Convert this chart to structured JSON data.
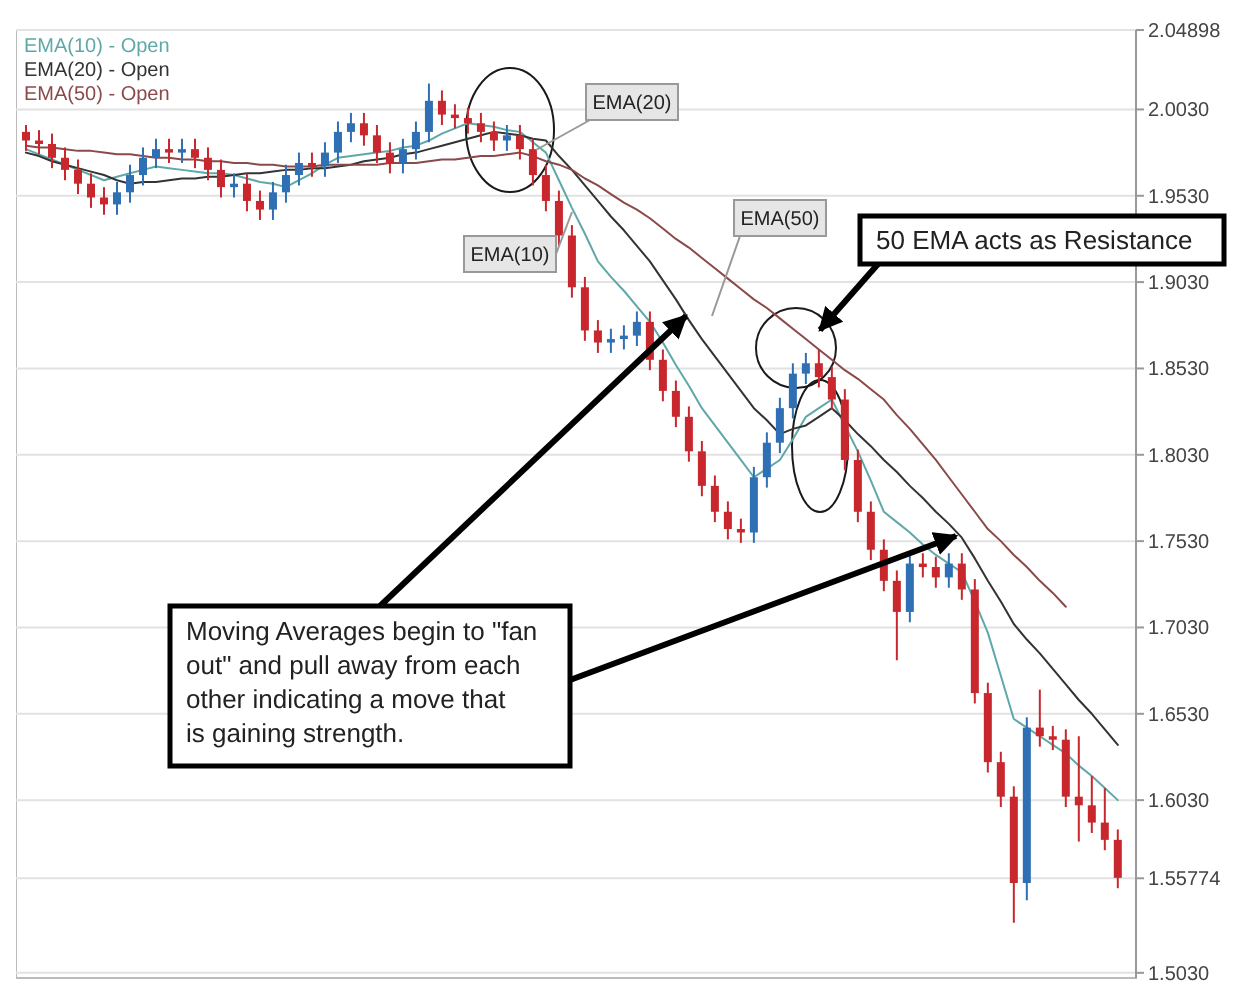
{
  "chart_data": {
    "type": "candlestick",
    "categories": [
      null,
      null,
      null,
      null,
      null,
      null,
      null,
      null,
      null,
      null,
      null,
      null,
      null,
      null,
      null,
      null,
      null,
      null,
      null,
      null,
      null,
      null,
      null,
      null,
      null,
      null,
      null,
      null,
      null,
      null,
      null,
      null,
      null,
      null,
      null,
      null,
      null,
      null,
      null,
      null,
      null,
      null,
      null,
      null,
      null,
      null,
      null,
      null,
      null,
      null,
      null,
      null,
      null,
      null,
      null,
      null,
      null,
      null,
      null,
      null,
      null,
      null,
      null,
      null,
      null,
      null,
      null,
      null,
      null,
      null,
      null,
      null,
      null,
      null,
      null,
      null,
      null,
      null,
      null,
      null,
      null,
      null,
      null,
      null,
      null
    ],
    "ohlc": [
      [
        1.99,
        1.994,
        1.979,
        1.985
      ],
      [
        1.985,
        1.991,
        1.977,
        1.983
      ],
      [
        1.983,
        1.989,
        1.969,
        1.975
      ],
      [
        1.975,
        1.981,
        1.962,
        1.968
      ],
      [
        1.968,
        1.974,
        1.954,
        1.96
      ],
      [
        1.96,
        1.966,
        1.946,
        1.952
      ],
      [
        1.952,
        1.958,
        1.942,
        1.948
      ],
      [
        1.948,
        1.961,
        1.942,
        1.955
      ],
      [
        1.955,
        1.971,
        1.949,
        1.965
      ],
      [
        1.965,
        1.981,
        1.959,
        1.975
      ],
      [
        1.975,
        1.986,
        1.969,
        1.98
      ],
      [
        1.98,
        1.986,
        1.972,
        1.978
      ],
      [
        1.978,
        1.986,
        1.972,
        1.98
      ],
      [
        1.98,
        1.986,
        1.969,
        1.975
      ],
      [
        1.975,
        1.981,
        1.962,
        1.968
      ],
      [
        1.968,
        1.974,
        1.952,
        1.958
      ],
      [
        1.958,
        1.966,
        1.952,
        1.96
      ],
      [
        1.96,
        1.966,
        1.944,
        1.95
      ],
      [
        1.95,
        1.956,
        1.939,
        1.945
      ],
      [
        1.945,
        1.961,
        1.939,
        1.955
      ],
      [
        1.955,
        1.971,
        1.949,
        1.965
      ],
      [
        1.965,
        1.978,
        1.959,
        1.972
      ],
      [
        1.972,
        1.978,
        1.964,
        1.97
      ],
      [
        1.97,
        1.984,
        1.964,
        1.978
      ],
      [
        1.978,
        1.996,
        1.972,
        1.99
      ],
      [
        1.99,
        2.001,
        1.984,
        1.995
      ],
      [
        1.995,
        2.001,
        1.982,
        1.988
      ],
      [
        1.988,
        1.994,
        1.972,
        1.978
      ],
      [
        1.978,
        1.984,
        1.966,
        1.972
      ],
      [
        1.972,
        1.986,
        1.966,
        1.98
      ],
      [
        1.98,
        1.996,
        1.974,
        1.99
      ],
      [
        1.99,
        2.018,
        1.984,
        2.008
      ],
      [
        2.008,
        2.014,
        1.994,
        2.0
      ],
      [
        2.0,
        2.006,
        1.992,
        1.998
      ],
      [
        1.998,
        2.004,
        1.989,
        1.995
      ],
      [
        1.995,
        2.001,
        1.984,
        1.99
      ],
      [
        1.99,
        1.996,
        1.979,
        1.985
      ],
      [
        1.985,
        1.994,
        1.979,
        1.988
      ],
      [
        1.988,
        1.994,
        1.974,
        1.98
      ],
      [
        1.98,
        1.986,
        1.959,
        1.965
      ],
      [
        1.965,
        1.971,
        1.944,
        1.95
      ],
      [
        1.95,
        1.956,
        1.924,
        1.93
      ],
      [
        1.93,
        1.936,
        1.894,
        1.9
      ],
      [
        1.9,
        1.906,
        1.869,
        1.875
      ],
      [
        1.875,
        1.881,
        1.862,
        1.868
      ],
      [
        1.868,
        1.876,
        1.862,
        1.87
      ],
      [
        1.87,
        1.878,
        1.864,
        1.872
      ],
      [
        1.872,
        1.886,
        1.866,
        1.88
      ],
      [
        1.88,
        1.886,
        1.852,
        1.858
      ],
      [
        1.858,
        1.864,
        1.834,
        1.84
      ],
      [
        1.84,
        1.846,
        1.819,
        1.825
      ],
      [
        1.825,
        1.831,
        1.799,
        1.805
      ],
      [
        1.805,
        1.811,
        1.779,
        1.785
      ],
      [
        1.785,
        1.791,
        1.764,
        1.77
      ],
      [
        1.77,
        1.776,
        1.754,
        1.76
      ],
      [
        1.76,
        1.766,
        1.752,
        1.758
      ],
      [
        1.758,
        1.796,
        1.752,
        1.79
      ],
      [
        1.79,
        1.816,
        1.784,
        1.81
      ],
      [
        1.81,
        1.836,
        1.804,
        1.83
      ],
      [
        1.83,
        1.856,
        1.824,
        1.85
      ],
      [
        1.85,
        1.862,
        1.844,
        1.856
      ],
      [
        1.856,
        1.864,
        1.842,
        1.848
      ],
      [
        1.848,
        1.854,
        1.829,
        1.835
      ],
      [
        1.835,
        1.841,
        1.794,
        1.8
      ],
      [
        1.8,
        1.806,
        1.764,
        1.77
      ],
      [
        1.77,
        1.776,
        1.742,
        1.748
      ],
      [
        1.748,
        1.754,
        1.724,
        1.73
      ],
      [
        1.73,
        1.736,
        1.684,
        1.712
      ],
      [
        1.712,
        1.746,
        1.706,
        1.74
      ],
      [
        1.74,
        1.746,
        1.732,
        1.738
      ],
      [
        1.738,
        1.744,
        1.726,
        1.732
      ],
      [
        1.732,
        1.746,
        1.726,
        1.74
      ],
      [
        1.74,
        1.746,
        1.719,
        1.725
      ],
      [
        1.725,
        1.731,
        1.659,
        1.665
      ],
      [
        1.665,
        1.671,
        1.619,
        1.625
      ],
      [
        1.625,
        1.631,
        1.599,
        1.605
      ],
      [
        1.605,
        1.611,
        1.532,
        1.555
      ],
      [
        1.555,
        1.651,
        1.545,
        1.645
      ],
      [
        1.645,
        1.667,
        1.634,
        1.64
      ],
      [
        1.64,
        1.646,
        1.632,
        1.638
      ],
      [
        1.638,
        1.644,
        1.599,
        1.605
      ],
      [
        1.605,
        1.64,
        1.579,
        1.6
      ],
      [
        1.6,
        1.617,
        1.584,
        1.59
      ],
      [
        1.59,
        1.61,
        1.574,
        1.58
      ],
      [
        1.58,
        1.586,
        1.552,
        1.558
      ]
    ],
    "colors": [
      "#c8282d",
      "#c8282d",
      "#c8282d",
      "#c8282d",
      "#c8282d",
      "#c8282d",
      "#c8282d",
      "#2f6fb3",
      "#2f6fb3",
      "#2f6fb3",
      "#2f6fb3",
      "#c8282d",
      "#2f6fb3",
      "#c8282d",
      "#c8282d",
      "#c8282d",
      "#2f6fb3",
      "#c8282d",
      "#c8282d",
      "#2f6fb3",
      "#2f6fb3",
      "#2f6fb3",
      "#c8282d",
      "#2f6fb3",
      "#2f6fb3",
      "#2f6fb3",
      "#c8282d",
      "#c8282d",
      "#c8282d",
      "#2f6fb3",
      "#2f6fb3",
      "#2f6fb3",
      "#c8282d",
      "#c8282d",
      "#c8282d",
      "#c8282d",
      "#c8282d",
      "#2f6fb3",
      "#c8282d",
      "#c8282d",
      "#c8282d",
      "#c8282d",
      "#c8282d",
      "#c8282d",
      "#c8282d",
      "#2f6fb3",
      "#2f6fb3",
      "#2f6fb3",
      "#c8282d",
      "#c8282d",
      "#c8282d",
      "#c8282d",
      "#c8282d",
      "#c8282d",
      "#c8282d",
      "#c8282d",
      "#2f6fb3",
      "#2f6fb3",
      "#2f6fb3",
      "#2f6fb3",
      "#2f6fb3",
      "#c8282d",
      "#c8282d",
      "#c8282d",
      "#c8282d",
      "#c8282d",
      "#c8282d",
      "#c8282d",
      "#2f6fb3",
      "#c8282d",
      "#c8282d",
      "#2f6fb3",
      "#c8282d",
      "#c8282d",
      "#c8282d",
      "#c8282d",
      "#c8282d",
      "#2f6fb3",
      "#c8282d",
      "#c8282d",
      "#c8282d",
      "#c8282d",
      "#c8282d",
      "#c8282d",
      "#c8282d"
    ],
    "series": [
      {
        "type": "line",
        "name": "EMA(10) - Open",
        "color": "#5fa8a8",
        "values": [
          1.98,
          1.977,
          1.974,
          1.971,
          1.968,
          1.965,
          1.962,
          1.964,
          1.966,
          1.968,
          1.97,
          1.969,
          1.968,
          1.967,
          1.966,
          1.966,
          1.965,
          1.963,
          1.961,
          1.96,
          1.958,
          1.962,
          1.966,
          1.971,
          1.975,
          1.976,
          1.977,
          1.978,
          1.979,
          1.981,
          1.982,
          1.985,
          1.989,
          1.992,
          1.995,
          1.994,
          1.993,
          1.991,
          1.99,
          1.984,
          1.978,
          1.962,
          1.946,
          1.931,
          1.915,
          1.906,
          1.898,
          1.889,
          1.88,
          1.868,
          1.855,
          1.843,
          1.83,
          1.82,
          1.81,
          1.8,
          1.79,
          1.795,
          1.8,
          1.812,
          1.825,
          1.83,
          1.835,
          1.82,
          1.805,
          1.788,
          1.77,
          1.764,
          1.758,
          1.751,
          1.745,
          1.74,
          1.735,
          1.718,
          1.7,
          1.675,
          1.65,
          1.645,
          1.64,
          1.635,
          1.63,
          1.623,
          1.617,
          1.61,
          1.603
        ]
      },
      {
        "type": "line",
        "name": "EMA(20) - Open",
        "color": "#333333",
        "values": [
          1.978,
          1.976,
          1.973,
          1.971,
          1.969,
          1.967,
          1.965,
          1.962,
          1.96,
          1.961,
          1.961,
          1.962,
          1.963,
          1.963,
          1.964,
          1.964,
          1.965,
          1.966,
          1.966,
          1.967,
          1.968,
          1.968,
          1.969,
          1.969,
          1.97,
          1.971,
          1.973,
          1.974,
          1.975,
          1.977,
          1.978,
          1.98,
          1.982,
          1.984,
          1.986,
          1.988,
          1.99,
          1.989,
          1.988,
          1.986,
          1.985,
          1.976,
          1.968,
          1.959,
          1.95,
          1.941,
          1.933,
          1.924,
          1.915,
          1.904,
          1.893,
          1.881,
          1.87,
          1.86,
          1.85,
          1.84,
          1.83,
          1.823,
          1.815,
          1.818,
          1.82,
          1.825,
          1.83,
          1.823,
          1.815,
          1.808,
          1.8,
          1.793,
          1.785,
          1.778,
          1.77,
          1.763,
          1.755,
          1.743,
          1.73,
          1.718,
          1.705,
          1.696,
          1.688,
          1.679,
          1.67,
          1.661,
          1.653,
          1.644,
          1.635
        ]
      },
      {
        "type": "line",
        "name": "EMA(50) - Open",
        "color": "#8a4a4a",
        "values": [
          1.982,
          1.981,
          1.981,
          1.98,
          1.979,
          1.979,
          1.978,
          1.977,
          1.977,
          1.976,
          1.975,
          1.975,
          1.974,
          1.974,
          1.973,
          1.973,
          1.972,
          1.972,
          1.971,
          1.971,
          1.97,
          1.97,
          1.97,
          1.971,
          1.971,
          1.971,
          1.971,
          1.971,
          1.972,
          1.972,
          1.972,
          1.973,
          1.974,
          1.974,
          1.975,
          1.976,
          1.976,
          1.977,
          1.978,
          1.976,
          1.973,
          1.971,
          1.968,
          1.963,
          1.959,
          1.954,
          1.949,
          1.945,
          1.94,
          1.934,
          1.928,
          1.923,
          1.917,
          1.911,
          1.905,
          1.899,
          1.893,
          1.888,
          1.882,
          1.876,
          1.87,
          1.864,
          1.858,
          1.852,
          1.847,
          1.841,
          1.835,
          1.826,
          1.818,
          1.809,
          1.8,
          1.79,
          1.78,
          1.77,
          1.76,
          1.753,
          1.745,
          1.738,
          1.73,
          1.723,
          1.715,
          null,
          null,
          null,
          null
        ]
      }
    ],
    "ylim": [
      1.5,
      2.049
    ],
    "yticks": [
      {
        "value": 2.04898,
        "label": "2.04898"
      },
      {
        "value": 2.003,
        "label": "2.0030"
      },
      {
        "value": 1.953,
        "label": "1.9530"
      },
      {
        "value": 1.903,
        "label": "1.9030"
      },
      {
        "value": 1.853,
        "label": "1.8530"
      },
      {
        "value": 1.803,
        "label": "1.8030"
      },
      {
        "value": 1.753,
        "label": "1.7530"
      },
      {
        "value": 1.703,
        "label": "1.7030"
      },
      {
        "value": 1.653,
        "label": "1.6530"
      },
      {
        "value": 1.603,
        "label": "1.6030"
      },
      {
        "value": 1.55774,
        "label": "1.55774"
      },
      {
        "value": 1.503,
        "label": "1.5030"
      }
    ],
    "tick_labels": "y",
    "grid": "y",
    "annotations": [
      "EMA(20)",
      "EMA(50)",
      "EMA(10)",
      "50 EMA acts as Resistance",
      "Moving Averages begin to \"fan out\" and pull away from each other indicating a move that is gaining strength."
    ]
  }
}
